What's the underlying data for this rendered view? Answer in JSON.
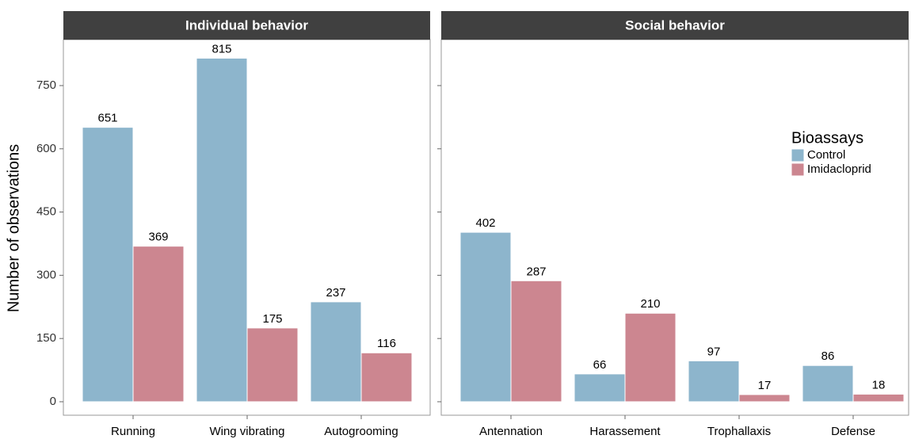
{
  "chart_data": [
    {
      "type": "bar",
      "title": "Individual behavior",
      "ylabel": "Number of observations",
      "categories": [
        "Running",
        "Wing vibrating",
        "Autogrooming"
      ],
      "series": [
        {
          "name": "Control",
          "color": "#8db5cc",
          "values": [
            651,
            815,
            237
          ]
        },
        {
          "name": "Imidacloprid",
          "color": "#cc8690",
          "values": [
            369,
            175,
            116
          ]
        }
      ],
      "ylim": [
        -32,
        859
      ],
      "yticks": [
        0,
        150,
        300,
        450,
        600,
        750
      ],
      "value_labels_shown": true
    },
    {
      "type": "bar",
      "title": "Social behavior",
      "categories": [
        "Antennation",
        "Harassement",
        "Trophallaxis",
        "Defense"
      ],
      "series": [
        {
          "name": "Control",
          "color": "#8db5cc",
          "values": [
            402,
            66,
            97,
            86
          ]
        },
        {
          "name": "Imidacloprid",
          "color": "#cc8690",
          "values": [
            287,
            210,
            17,
            18
          ]
        }
      ],
      "ylim": [
        -32,
        859
      ],
      "yticks": [
        0,
        150,
        300,
        450,
        600,
        750
      ],
      "value_labels_shown": true,
      "legend_title": "Bioassays",
      "legend": "right"
    }
  ]
}
